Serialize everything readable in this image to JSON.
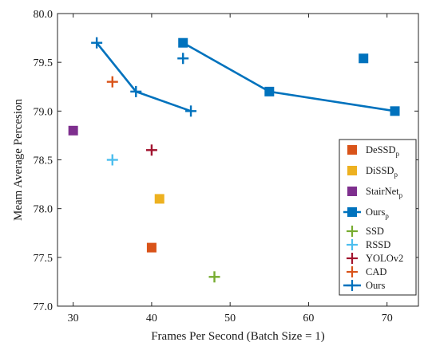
{
  "chart_data": {
    "type": "scatter",
    "xlabel": "Frames Per Second (Batch Size = 1)",
    "ylabel": "Meam Average Percesion",
    "xlim": [
      28,
      74
    ],
    "ylim": [
      77.0,
      80.0
    ],
    "xticks": [
      30,
      40,
      50,
      60,
      70
    ],
    "yticks": [
      77.0,
      77.5,
      78.0,
      78.5,
      79.0,
      79.5,
      80.0
    ],
    "xtick_labels": [
      "30",
      "40",
      "50",
      "60",
      "70"
    ],
    "ytick_labels": [
      "77.0",
      "77.5",
      "78.0",
      "78.5",
      "79.0",
      "79.5",
      "80.0"
    ],
    "grid": false,
    "legend_position": "bottom-right",
    "series": [
      {
        "name": "DeSSD",
        "sub": "p",
        "marker": "square",
        "color": "#d95319",
        "points": [
          [
            40,
            77.6
          ]
        ]
      },
      {
        "name": "DiSSD",
        "sub": "p",
        "marker": "square",
        "color": "#edb120",
        "points": [
          [
            41,
            78.1
          ]
        ]
      },
      {
        "name": "StairNet",
        "sub": "p",
        "marker": "square",
        "color": "#7e2f8e",
        "points": [
          [
            30,
            78.8
          ]
        ]
      },
      {
        "name": "Ours",
        "sub": "p",
        "marker": "square",
        "color": "#0072bd",
        "line": true,
        "points": [
          [
            44,
            79.7
          ],
          [
            55,
            79.2
          ],
          [
            71,
            79.0
          ]
        ],
        "extra_points": [
          [
            67,
            79.54
          ]
        ]
      },
      {
        "name": "SSD",
        "sub": "",
        "marker": "plus",
        "color": "#77ac30",
        "points": [
          [
            48,
            77.3
          ]
        ]
      },
      {
        "name": "RSSD",
        "sub": "",
        "marker": "plus",
        "color": "#4dbeee",
        "points": [
          [
            35,
            78.5
          ]
        ]
      },
      {
        "name": "YOLOv2",
        "sub": "",
        "marker": "plus",
        "color": "#a2142f",
        "points": [
          [
            40,
            78.6
          ]
        ]
      },
      {
        "name": "CAD",
        "sub": "",
        "marker": "plus",
        "color": "#d95319",
        "points": [
          [
            35,
            79.3
          ]
        ]
      },
      {
        "name": "Ours",
        "sub": "",
        "marker": "plus",
        "color": "#0072bd",
        "line": true,
        "points": [
          [
            33,
            79.7
          ],
          [
            38,
            79.2
          ],
          [
            45,
            79.0
          ]
        ],
        "extra_points": [
          [
            44,
            79.54
          ]
        ]
      }
    ]
  }
}
